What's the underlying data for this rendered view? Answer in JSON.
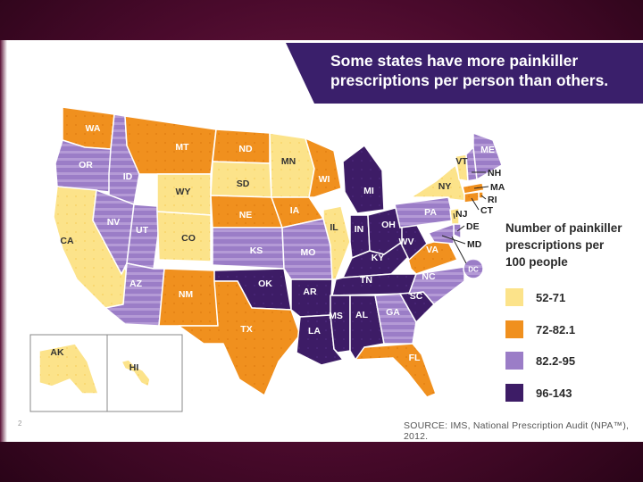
{
  "title_lines": [
    "Some states have more painkiller",
    "prescriptions per person than others."
  ],
  "legend": {
    "title_lines": [
      "Number of painkiller",
      "prescriptions per",
      "100 people"
    ],
    "categories": [
      {
        "label": "52-71",
        "color": "#fce38a"
      },
      {
        "label": "72-82.1",
        "color": "#f0901e"
      },
      {
        "label": "82.2-95",
        "color": "#9b7dc7"
      },
      {
        "label": "96-143",
        "color": "#3d1c66"
      }
    ]
  },
  "source": "SOURCE: IMS, National Prescription Audit (NPA™), 2012.",
  "page_number": "2",
  "states": [
    {
      "abbr": "WA",
      "category": 1
    },
    {
      "abbr": "OR",
      "category": 2
    },
    {
      "abbr": "CA",
      "category": 0
    },
    {
      "abbr": "ID",
      "category": 2
    },
    {
      "abbr": "NV",
      "category": 2
    },
    {
      "abbr": "UT",
      "category": 2
    },
    {
      "abbr": "AZ",
      "category": 2
    },
    {
      "abbr": "MT",
      "category": 1
    },
    {
      "abbr": "WY",
      "category": 0
    },
    {
      "abbr": "CO",
      "category": 0
    },
    {
      "abbr": "NM",
      "category": 1
    },
    {
      "abbr": "ND",
      "category": 1
    },
    {
      "abbr": "SD",
      "category": 0
    },
    {
      "abbr": "NE",
      "category": 1
    },
    {
      "abbr": "KS",
      "category": 2
    },
    {
      "abbr": "OK",
      "category": 3
    },
    {
      "abbr": "TX",
      "category": 1
    },
    {
      "abbr": "MN",
      "category": 0
    },
    {
      "abbr": "IA",
      "category": 1
    },
    {
      "abbr": "MO",
      "category": 2
    },
    {
      "abbr": "AR",
      "category": 3
    },
    {
      "abbr": "LA",
      "category": 3
    },
    {
      "abbr": "WI",
      "category": 1
    },
    {
      "abbr": "IL",
      "category": 0
    },
    {
      "abbr": "MI",
      "category": 3
    },
    {
      "abbr": "IN",
      "category": 3
    },
    {
      "abbr": "OH",
      "category": 3
    },
    {
      "abbr": "KY",
      "category": 3
    },
    {
      "abbr": "TN",
      "category": 3
    },
    {
      "abbr": "MS",
      "category": 3
    },
    {
      "abbr": "AL",
      "category": 3
    },
    {
      "abbr": "GA",
      "category": 2
    },
    {
      "abbr": "FL",
      "category": 1
    },
    {
      "abbr": "SC",
      "category": 3
    },
    {
      "abbr": "NC",
      "category": 2
    },
    {
      "abbr": "VA",
      "category": 1
    },
    {
      "abbr": "WV",
      "category": 3
    },
    {
      "abbr": "PA",
      "category": 2
    },
    {
      "abbr": "NY",
      "category": 0
    },
    {
      "abbr": "VT",
      "category": 0
    },
    {
      "abbr": "NH",
      "category": 2
    },
    {
      "abbr": "ME",
      "category": 2
    },
    {
      "abbr": "MA",
      "category": 1
    },
    {
      "abbr": "RI",
      "category": 1
    },
    {
      "abbr": "CT",
      "category": 1
    },
    {
      "abbr": "NJ",
      "category": 0
    },
    {
      "abbr": "DE",
      "category": 2
    },
    {
      "abbr": "MD",
      "category": 2
    },
    {
      "abbr": "DC",
      "category": 2
    },
    {
      "abbr": "AK",
      "category": 0
    },
    {
      "abbr": "HI",
      "category": 0
    }
  ]
}
